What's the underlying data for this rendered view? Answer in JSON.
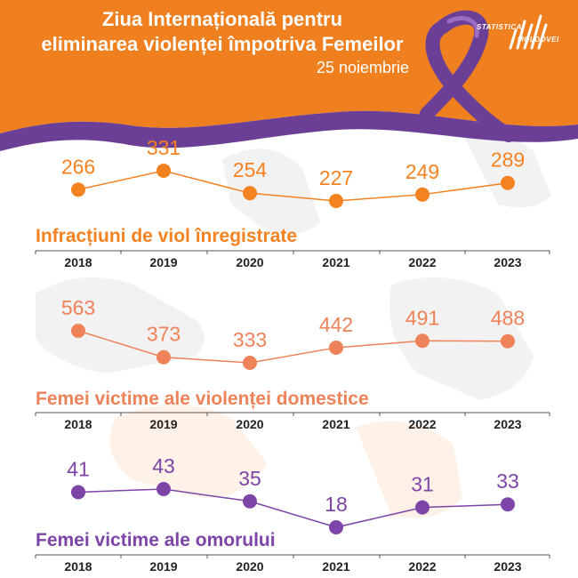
{
  "header": {
    "title_line1": "Ziua Internațională pentru",
    "title_line2": "eliminarea violenței împotriva Femeilor",
    "date": "25 noiembrie",
    "logo_text_1": "STATISTICA",
    "logo_text_2": "MOLDOVEI",
    "colors": {
      "banner": "#f07f1f",
      "ribbon": "#6c3f96"
    }
  },
  "chart_data": [
    {
      "type": "line",
      "title": "Infracțiuni de viol înregistrate",
      "categories": [
        "2018",
        "2019",
        "2020",
        "2021",
        "2022",
        "2023"
      ],
      "values": [
        266,
        331,
        254,
        227,
        249,
        289
      ],
      "color": "#f58220",
      "grid": false
    },
    {
      "type": "line",
      "title": "Femei victime ale violenței domestice",
      "categories": [
        "2018",
        "2019",
        "2020",
        "2021",
        "2022",
        "2023"
      ],
      "values": [
        563,
        373,
        333,
        442,
        491,
        488
      ],
      "color": "#ee8259",
      "grid": false
    },
    {
      "type": "line",
      "title": "Femei victime ale omorului",
      "categories": [
        "2018",
        "2019",
        "2020",
        "2021",
        "2022",
        "2023"
      ],
      "values": [
        41,
        43,
        35,
        18,
        31,
        33
      ],
      "color": "#7d45a8",
      "grid": false
    }
  ]
}
